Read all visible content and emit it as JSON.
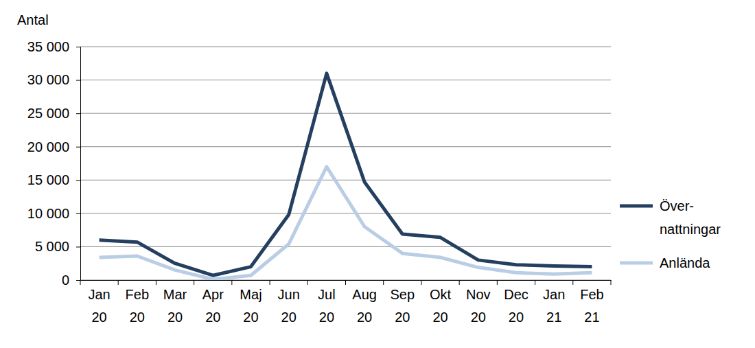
{
  "chart_data": {
    "type": "line",
    "y_label": "Antal",
    "categories": [
      "Jan 20",
      "Feb 20",
      "Mar 20",
      "Apr 20",
      "Maj 20",
      "Jun 20",
      "Jul 20",
      "Aug 20",
      "Sep 20",
      "Okt 20",
      "Nov 20",
      "Dec 20",
      "Jan 21",
      "Feb 21"
    ],
    "series": [
      {
        "name": "Över-nattningar",
        "color": "#243f60",
        "values": [
          6000,
          5700,
          2500,
          700,
          2000,
          9800,
          31000,
          14700,
          6900,
          6400,
          3000,
          2300,
          2100,
          2000
        ]
      },
      {
        "name": "Anlända",
        "color": "#b9cde5",
        "values": [
          3400,
          3600,
          1500,
          100,
          700,
          5400,
          17000,
          8000,
          4000,
          3400,
          1900,
          1100,
          900,
          1100
        ]
      }
    ],
    "ylim": [
      0,
      35000
    ],
    "yticks": [
      0,
      {
        "value": 5000,
        "label": "5 000"
      },
      {
        "value": 10000,
        "label": "10 000"
      },
      {
        "value": 15000,
        "label": "15 000"
      },
      {
        "value": 20000,
        "label": "20 000"
      },
      {
        "value": 25000,
        "label": "25 000"
      },
      {
        "value": 30000,
        "label": "30 000"
      },
      {
        "value": 35000,
        "label": "35 000"
      }
    ],
    "grid": true,
    "legend": "right"
  }
}
